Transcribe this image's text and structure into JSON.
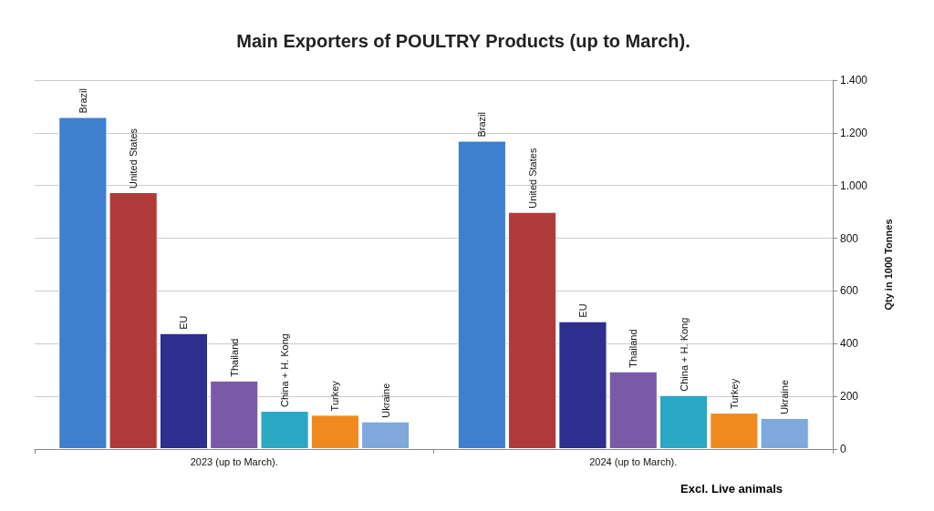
{
  "chart_data": {
    "type": "bar",
    "title": "Main Exporters of POULTRY Products (up to March).",
    "ylabel": "Qty in 1000 Tonnes",
    "categories": [
      "2023 (up to March).",
      "2024 (up to March)."
    ],
    "series": [
      {
        "name": "Brazil",
        "color": "#3f7fcf",
        "values": [
          1260,
          1170
        ]
      },
      {
        "name": "United States",
        "color": "#b03a3a",
        "values": [
          975,
          900
        ]
      },
      {
        "name": "EU",
        "color": "#2e2e8f",
        "values": [
          440,
          485
        ]
      },
      {
        "name": "Thailand",
        "color": "#7a5aa8",
        "values": [
          260,
          295
        ]
      },
      {
        "name": "China + H. Kong",
        "color": "#2aa8c4",
        "values": [
          145,
          205
        ]
      },
      {
        "name": "Turkey",
        "color": "#f08a1e",
        "values": [
          130,
          138
        ]
      },
      {
        "name": "Ukraine",
        "color": "#7fa8dc",
        "values": [
          105,
          118
        ]
      }
    ],
    "ylim": [
      0,
      1400
    ],
    "yticks": [
      0,
      200,
      400,
      600,
      800,
      {
        "value": 1000,
        "label": "1.000"
      },
      {
        "value": 1200,
        "label": "1.200"
      },
      {
        "value": 1400,
        "label": "1.400"
      }
    ],
    "grid": "y",
    "legend": false,
    "annotations": [
      "Excl. Live animals"
    ]
  }
}
